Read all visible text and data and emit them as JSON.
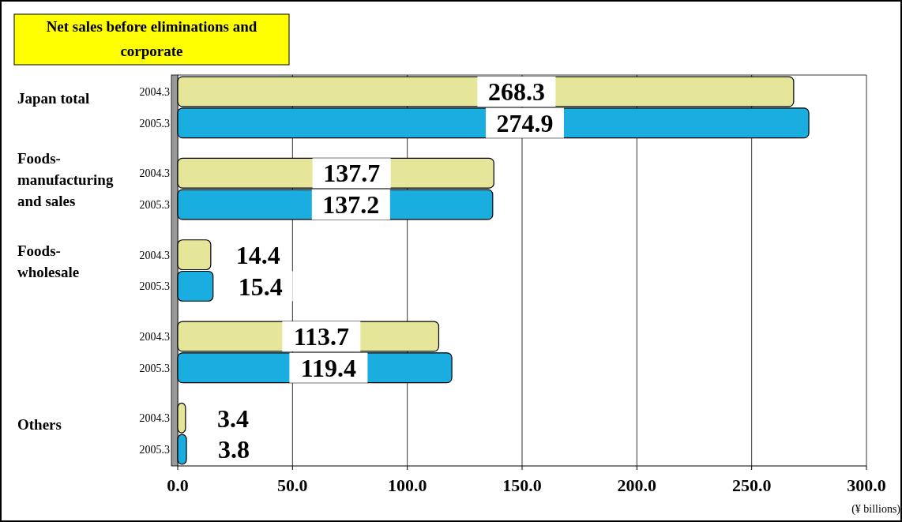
{
  "chart_data": {
    "type": "bar",
    "orientation": "horizontal",
    "title": "Net sales before eliminations and corporate",
    "xlabel": "(¥ billions)",
    "categories": [
      "Japan total",
      "Foods-manufacturing and sales",
      "Foods-wholesale",
      null,
      "Others"
    ],
    "series": [
      {
        "name": "2004.3",
        "color": "#e6e69a",
        "values": [
          268.3,
          137.7,
          14.4,
          113.7,
          3.4
        ]
      },
      {
        "name": "2005.3",
        "color": "#1aaee0",
        "values": [
          274.9,
          137.2,
          15.4,
          119.4,
          3.8
        ]
      }
    ],
    "xlim": [
      0,
      300
    ],
    "xticks": [
      {
        "value": 0,
        "label": "0.0"
      },
      {
        "value": 50,
        "label": "50.0"
      },
      {
        "value": 100,
        "label": "100.0"
      },
      {
        "value": 150,
        "label": "150.0"
      },
      {
        "value": 200,
        "label": "200.0"
      },
      {
        "value": 250,
        "label": "250.0"
      },
      {
        "value": 300,
        "label": "300.0"
      }
    ],
    "grid": "x",
    "data_labels": true
  }
}
